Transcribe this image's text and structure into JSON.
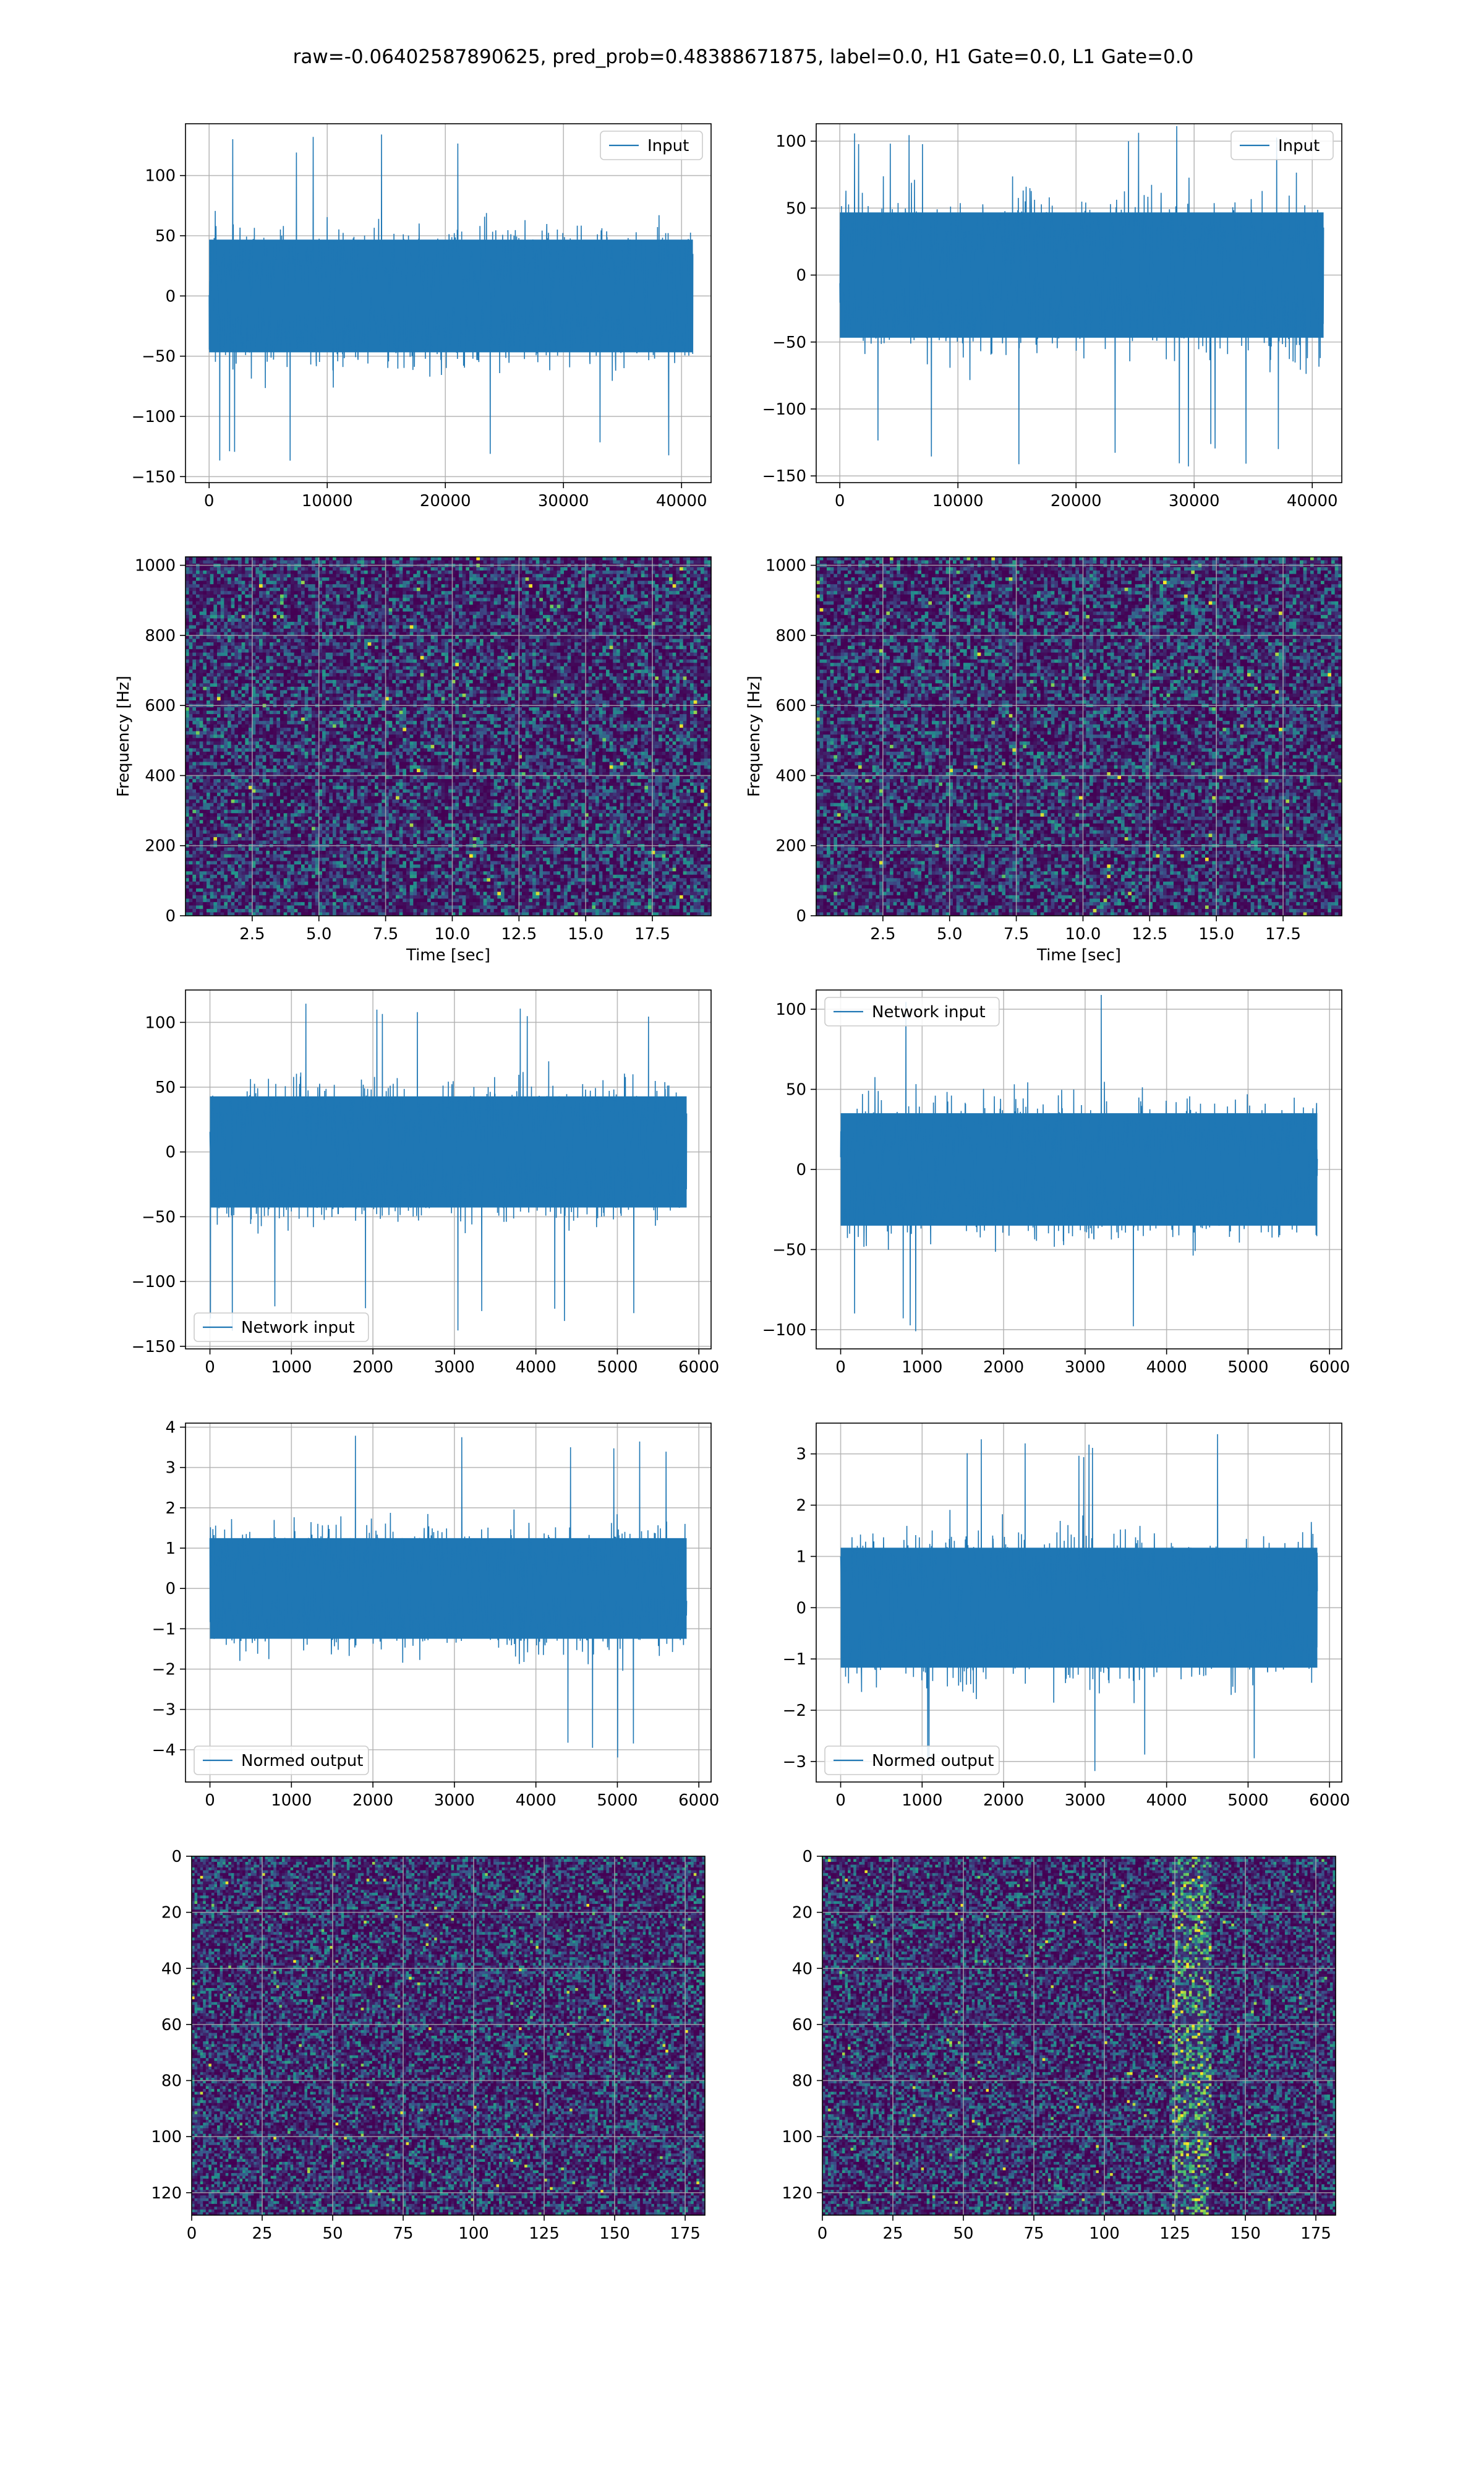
{
  "figure": {
    "suptitle": "raw=-0.06402587890625, pred_prob=0.48388671875, label=0.0, H1 Gate=0.0, L1 Gate=0.0"
  },
  "colors": {
    "line": "#1f77b4",
    "grid": "#b0b0b0",
    "viridis": [
      "#440154",
      "#3b528b",
      "#21918c",
      "#5ec962",
      "#fde725"
    ]
  },
  "chart_data": [
    {
      "id": "h1-input",
      "type": "line",
      "series": [
        {
          "name": "Input"
        }
      ],
      "legend": "top-right",
      "xlim": [
        -2000,
        42500
      ],
      "ylim": [
        -155,
        143
      ],
      "xticks": [
        0,
        10000,
        20000,
        30000,
        40000
      ],
      "yticks": [
        -150,
        -100,
        -50,
        0,
        50,
        100
      ],
      "signal": {
        "x_start": 0,
        "x_end": 40960,
        "band": [
          -60,
          60
        ],
        "extremes": [
          -140,
          136
        ]
      },
      "grid": true
    },
    {
      "id": "l1-input",
      "type": "line",
      "series": [
        {
          "name": "Input"
        }
      ],
      "legend": "top-right",
      "xlim": [
        -2000,
        42500
      ],
      "ylim": [
        -155,
        113
      ],
      "xticks": [
        0,
        10000,
        20000,
        30000,
        40000
      ],
      "yticks": [
        -150,
        -100,
        -50,
        0,
        50,
        100
      ],
      "signal": {
        "x_start": 0,
        "x_end": 40960,
        "band": [
          -60,
          60
        ],
        "extremes": [
          -143,
          115
        ]
      },
      "grid": true
    },
    {
      "id": "h1-spectrogram",
      "type": "heatmap",
      "xlabel": "Time [sec]",
      "ylabel": "Frequency [Hz]",
      "xlim": [
        0,
        19.7
      ],
      "ylim": [
        0,
        1024
      ],
      "xticks": [
        2.5,
        5.0,
        7.5,
        10.0,
        12.5,
        15.0,
        17.5
      ],
      "xticklabels": [
        "2.5",
        "5.0",
        "7.5",
        "10.0",
        "12.5",
        "15.0",
        "17.5"
      ],
      "yticks": [
        0,
        200,
        400,
        600,
        800,
        1000
      ],
      "grid": true
    },
    {
      "id": "l1-spectrogram",
      "type": "heatmap",
      "xlabel": "Time [sec]",
      "ylabel": "Frequency [Hz]",
      "xlim": [
        0,
        19.7
      ],
      "ylim": [
        0,
        1024
      ],
      "xticks": [
        2.5,
        5.0,
        7.5,
        10.0,
        12.5,
        15.0,
        17.5
      ],
      "xticklabels": [
        "2.5",
        "5.0",
        "7.5",
        "10.0",
        "12.5",
        "15.0",
        "17.5"
      ],
      "yticks": [
        0,
        200,
        400,
        600,
        800,
        1000
      ],
      "grid": true
    },
    {
      "id": "h1-network-input",
      "type": "line",
      "series": [
        {
          "name": "Network input"
        }
      ],
      "legend": "bottom-left",
      "xlim": [
        -300,
        6150
      ],
      "ylim": [
        -152,
        125
      ],
      "xticks": [
        0,
        1000,
        2000,
        3000,
        4000,
        5000,
        6000
      ],
      "yticks": [
        -150,
        -100,
        -50,
        0,
        50,
        100
      ],
      "signal": {
        "x_start": 0,
        "x_end": 5850,
        "band": [
          -55,
          55
        ],
        "extremes": [
          -140,
          120
        ]
      },
      "grid": true
    },
    {
      "id": "l1-network-input",
      "type": "line",
      "series": [
        {
          "name": "Network input"
        }
      ],
      "legend": "top-left",
      "xlim": [
        -300,
        6150
      ],
      "ylim": [
        -112,
        112
      ],
      "xticks": [
        0,
        1000,
        2000,
        3000,
        4000,
        5000,
        6000
      ],
      "yticks": [
        -100,
        -50,
        0,
        50,
        100
      ],
      "signal": {
        "x_start": 0,
        "x_end": 5850,
        "band": [
          -45,
          45
        ],
        "extremes": [
          -102,
          110
        ]
      },
      "grid": true
    },
    {
      "id": "h1-normed-output",
      "type": "line",
      "series": [
        {
          "name": "Normed output"
        }
      ],
      "legend": "bottom-left",
      "xlim": [
        -300,
        6150
      ],
      "ylim": [
        -4.8,
        4.1
      ],
      "xticks": [
        0,
        1000,
        2000,
        3000,
        4000,
        5000,
        6000
      ],
      "yticks": [
        -4,
        -3,
        -2,
        -1,
        0,
        1,
        2,
        3,
        4
      ],
      "signal": {
        "x_start": 0,
        "x_end": 5850,
        "band": [
          -1.6,
          1.6
        ],
        "extremes": [
          -4.3,
          3.8
        ]
      },
      "grid": true
    },
    {
      "id": "l1-normed-output",
      "type": "line",
      "series": [
        {
          "name": "Normed output"
        }
      ],
      "legend": "bottom-left",
      "xlim": [
        -300,
        6150
      ],
      "ylim": [
        -3.4,
        3.6
      ],
      "xticks": [
        0,
        1000,
        2000,
        3000,
        4000,
        5000,
        6000
      ],
      "yticks": [
        -3,
        -2,
        -1,
        0,
        1,
        2,
        3
      ],
      "signal": {
        "x_start": 0,
        "x_end": 5850,
        "band": [
          -1.5,
          1.5
        ],
        "extremes": [
          -3.2,
          3.4
        ]
      },
      "grid": true
    },
    {
      "id": "h1-qtransform",
      "type": "heatmap",
      "xlim": [
        0,
        182
      ],
      "ylim": [
        128,
        0
      ],
      "xticks": [
        0,
        25,
        50,
        75,
        100,
        125,
        150,
        175
      ],
      "yticks": [
        0,
        20,
        40,
        60,
        80,
        100,
        120
      ],
      "grid": true
    },
    {
      "id": "l1-qtransform",
      "type": "heatmap",
      "xlim": [
        0,
        182
      ],
      "ylim": [
        128,
        0
      ],
      "xticks": [
        0,
        25,
        50,
        75,
        100,
        125,
        150,
        175
      ],
      "yticks": [
        0,
        20,
        40,
        60,
        80,
        100,
        120
      ],
      "bright_band_x": [
        124,
        138
      ],
      "grid": true
    }
  ]
}
